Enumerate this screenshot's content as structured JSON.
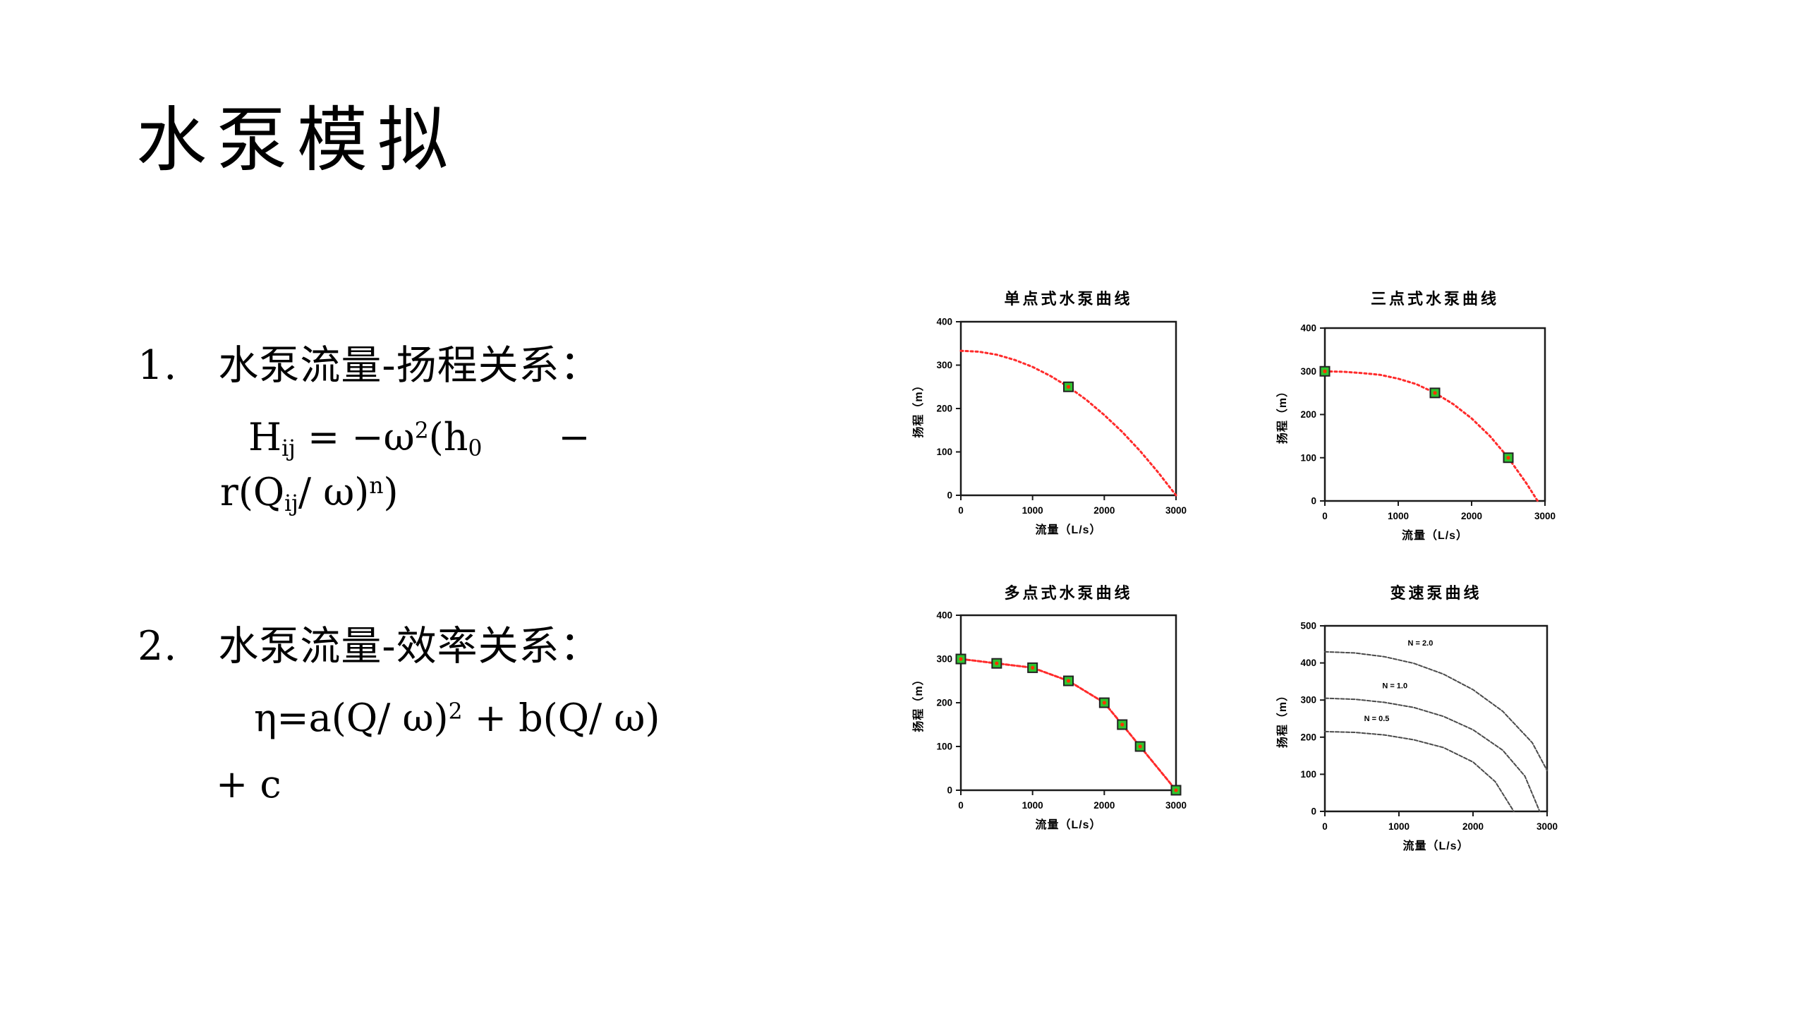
{
  "slide": {
    "title": "水泵模拟",
    "item1": "1.　水泵流量-扬程关系：",
    "item2": "2.　水泵流量-效率关系：",
    "formula1": {
      "line1": [
        {
          "t": "H"
        },
        {
          "t": "ij",
          "v": "sub"
        },
        {
          "t": " = −ω"
        },
        {
          "t": "2",
          "v": "sup"
        },
        {
          "t": "(h"
        },
        {
          "t": "0",
          "v": "sub"
        },
        {
          "t": "　　−"
        }
      ],
      "line2": [
        {
          "t": "r(Q"
        },
        {
          "t": "ij",
          "v": "sub"
        },
        {
          "t": "/ ω)"
        },
        {
          "t": "n",
          "v": "sup"
        },
        {
          "t": ")"
        }
      ]
    },
    "formula2": {
      "line1": [
        {
          "t": "η=a(Q/ ω)"
        },
        {
          "t": "2",
          "v": "sup"
        },
        {
          "t": "  +  b(Q/ ω)"
        }
      ],
      "line2": [
        {
          "t": "+  c"
        }
      ]
    }
  },
  "chart_data": [
    {
      "id": "single-point",
      "type": "line",
      "title": "单点式水泵曲线",
      "xlabel": "流量（L/s）",
      "ylabel": "扬程（m）",
      "xlim": [
        0,
        3000
      ],
      "ylim": [
        0,
        400
      ],
      "xticks": [
        0,
        1000,
        2000,
        3000
      ],
      "yticks": [
        0,
        100,
        200,
        300,
        400
      ],
      "curve_color": "#ff2b2b",
      "series": [
        {
          "name": "pump-curve",
          "x": [
            0,
            250,
            500,
            750,
            1000,
            1250,
            1500,
            1750,
            2000,
            2250,
            2500,
            2750,
            3000
          ],
          "y": [
            333,
            331,
            324,
            312,
            296,
            275,
            250,
            220,
            185,
            146,
            102,
            53,
            0
          ]
        }
      ],
      "markers": [
        [
          1500,
          250
        ]
      ],
      "marker_style": {
        "fill": "#2fc52f",
        "border": "#222222",
        "dot": "#ff3300"
      }
    },
    {
      "id": "three-point",
      "type": "line",
      "title": "三点式水泵曲线",
      "xlabel": "流量（L/s）",
      "ylabel": "扬程（m）",
      "xlim": [
        0,
        3000
      ],
      "ylim": [
        0,
        400
      ],
      "xticks": [
        0,
        1000,
        2000,
        3000
      ],
      "yticks": [
        0,
        100,
        200,
        300,
        400
      ],
      "curve_color": "#ff2b2b",
      "series": [
        {
          "name": "pump-curve",
          "x": [
            0,
            250,
            500,
            750,
            1000,
            1250,
            1500,
            1750,
            2000,
            2250,
            2500,
            2750,
            2900
          ],
          "y": [
            300,
            299,
            296,
            292,
            283,
            270,
            250,
            224,
            191,
            150,
            100,
            40,
            0
          ]
        }
      ],
      "markers": [
        [
          0,
          300
        ],
        [
          1500,
          250
        ],
        [
          2500,
          100
        ]
      ],
      "marker_style": {
        "fill": "#2fc52f",
        "border": "#222222",
        "dot": "#ff3300"
      }
    },
    {
      "id": "multi-point",
      "type": "line",
      "title": "多点式水泵曲线",
      "xlabel": "流量（L/s）",
      "ylabel": "扬程（m）",
      "xlim": [
        0,
        3000
      ],
      "ylim": [
        0,
        400
      ],
      "xticks": [
        0,
        1000,
        2000,
        3000
      ],
      "yticks": [
        0,
        100,
        200,
        300,
        400
      ],
      "curve_color": "#ff2b2b",
      "series": [
        {
          "name": "pump-curve",
          "x": [
            0,
            500,
            1000,
            1500,
            2000,
            2250,
            2500,
            3000
          ],
          "y": [
            300,
            290,
            280,
            250,
            200,
            150,
            100,
            0
          ]
        }
      ],
      "markers": [
        [
          0,
          300
        ],
        [
          500,
          290
        ],
        [
          1000,
          280
        ],
        [
          1500,
          250
        ],
        [
          2000,
          200
        ],
        [
          2250,
          150
        ],
        [
          2500,
          100
        ],
        [
          3000,
          0
        ]
      ],
      "marker_style": {
        "fill": "#2fc52f",
        "border": "#222222",
        "dot": "#ff3300"
      }
    },
    {
      "id": "variable-speed",
      "type": "line",
      "title": "变速泵曲线",
      "xlabel": "流量（L/s）",
      "ylabel": "扬程（m）",
      "xlim": [
        0,
        3000
      ],
      "ylim": [
        0,
        500
      ],
      "xticks": [
        0,
        1000,
        2000,
        3000
      ],
      "yticks": [
        0,
        100,
        200,
        300,
        400,
        500
      ],
      "curve_color": "#4a4a4a",
      "series": [
        {
          "name": "N = 2.0",
          "x": [
            0,
            400,
            800,
            1200,
            1600,
            2000,
            2400,
            2800,
            3000
          ],
          "y": [
            430,
            427,
            417,
            399,
            370,
            328,
            270,
            185,
            110
          ],
          "label_at": [
            1290,
            447
          ]
        },
        {
          "name": "N = 1.0",
          "x": [
            0,
            400,
            800,
            1200,
            1600,
            2000,
            2400,
            2700,
            2900
          ],
          "y": [
            305,
            302,
            294,
            280,
            256,
            220,
            165,
            95,
            0
          ],
          "label_at": [
            945,
            332
          ]
        },
        {
          "name": "N = 0.5",
          "x": [
            0,
            400,
            800,
            1200,
            1600,
            2000,
            2300,
            2550
          ],
          "y": [
            215,
            213,
            206,
            193,
            172,
            133,
            80,
            0
          ],
          "label_at": [
            700,
            243
          ]
        }
      ],
      "markers": [],
      "marker_style": {
        "fill": "#2fc52f",
        "border": "#222222",
        "dot": "#ff3300"
      }
    }
  ]
}
